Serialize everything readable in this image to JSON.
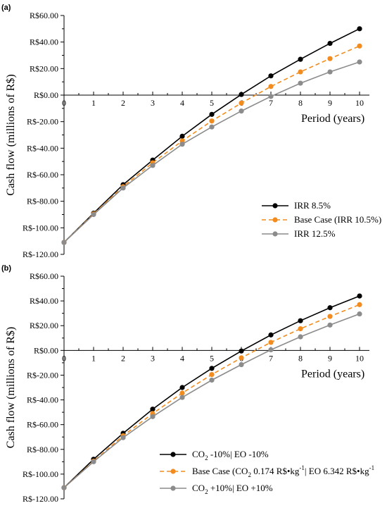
{
  "chart_data": [
    {
      "type": "line",
      "panel": "(a)",
      "xlabel": "Period (years)",
      "ylabel": "Cash flow (millions of R$)",
      "x": [
        0,
        1,
        2,
        3,
        4,
        5,
        6,
        7,
        8,
        9,
        10
      ],
      "xlim": [
        0,
        10
      ],
      "ylim": [
        -120,
        60
      ],
      "yticks": [
        60,
        40,
        20,
        0,
        -20,
        -40,
        -60,
        -80,
        -100,
        -120
      ],
      "ytick_labels": [
        "R$60.00",
        "R$40.00",
        "R$20.00",
        "R$0.00",
        "R$-20.00",
        "R$-40.00",
        "R$-60.00",
        "R$-80.00",
        "R$-100.00",
        "R$-120.00"
      ],
      "xtick_labels": [
        "0",
        "1",
        "2",
        "3",
        "4",
        "5",
        "6",
        "7",
        "8",
        "9",
        "10"
      ],
      "legend_position": "bottom-right",
      "series": [
        {
          "name": "IRR 8.5%",
          "color": "#000000",
          "style": "solid",
          "values": [
            -111,
            -89,
            -67.5,
            -49,
            -31,
            -14.5,
            0.5,
            14.5,
            27,
            39,
            50
          ]
        },
        {
          "name": "Base Case (IRR 10.5%)",
          "color": "#f28c1e",
          "style": "dashed",
          "values": [
            -111,
            -89.5,
            -69,
            -51,
            -34.5,
            -19.5,
            -6,
            6.5,
            17.5,
            27.5,
            37
          ]
        },
        {
          "name": "IRR 12.5%",
          "color": "#8c8c8c",
          "style": "solid",
          "values": [
            -111,
            -90,
            -70,
            -53,
            -37,
            -24,
            -12,
            -1,
            9,
            17.5,
            25
          ]
        }
      ]
    },
    {
      "type": "line",
      "panel": "(b)",
      "xlabel": "Period (years)",
      "ylabel": "Cash flow (millions of R$)",
      "x": [
        0,
        1,
        2,
        3,
        4,
        5,
        6,
        7,
        8,
        9,
        10
      ],
      "xlim": [
        0,
        10
      ],
      "ylim": [
        -120,
        60
      ],
      "yticks": [
        60,
        40,
        20,
        0,
        -20,
        -40,
        -60,
        -80,
        -100,
        -120
      ],
      "ytick_labels": [
        "R$60.00",
        "R$40.00",
        "R$20.00",
        "R$0.00",
        "R$-20.00",
        "R$-40.00",
        "R$-60.00",
        "R$-80.00",
        "R$-100.00",
        "R$-120.00"
      ],
      "xtick_labels": [
        "0",
        "1",
        "2",
        "3",
        "4",
        "5",
        "6",
        "7",
        "8",
        "9",
        "10"
      ],
      "legend_position": "bottom-right",
      "legend_parts": [
        {
          "a": "CO",
          "sub": "2",
          "b": " -10%",
          "c": "EO -10%"
        },
        {
          "a": "Base Case (CO",
          "sub": "2",
          "b": " 0.174 R$•kg",
          "sup": "-1",
          "c": "EO 6.342 R$•kg",
          "sup2": "-1"
        },
        {
          "a": "CO",
          "sub": "2",
          "b": " +10%",
          "c": "EO +10%"
        }
      ],
      "series": [
        {
          "name": "CO2 -10%| EO -10%",
          "color": "#000000",
          "style": "solid",
          "values": [
            -111,
            -88,
            -67,
            -47.5,
            -30,
            -14.5,
            -0.5,
            12.5,
            24,
            34.5,
            44
          ]
        },
        {
          "name": "Base Case (CO2 0.174 R$•kg-1| EO 6.342 R$•kg-1",
          "color": "#f28c1e",
          "style": "dashed",
          "values": [
            -111,
            -89.5,
            -69,
            -51,
            -34.5,
            -19.5,
            -6,
            6.5,
            17.5,
            27.5,
            37
          ]
        },
        {
          "name": "CO2 +10%| EO +10%",
          "color": "#8c8c8c",
          "style": "solid",
          "values": [
            -111,
            -90,
            -70.5,
            -53.5,
            -38,
            -24,
            -11.5,
            0.5,
            11,
            20.5,
            29.5
          ]
        }
      ]
    }
  ]
}
